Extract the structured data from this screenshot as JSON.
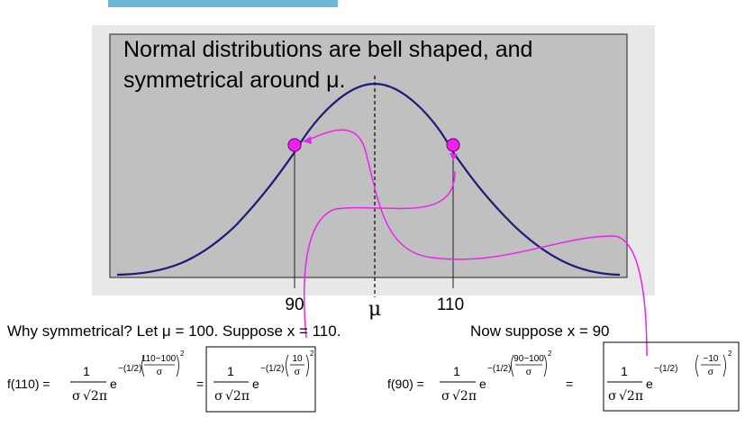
{
  "slide": {
    "heading_line1": "Normal distributions are bell shaped, and",
    "heading_line2": "symmetrical around μ."
  },
  "chart_data": {
    "type": "line",
    "title": "",
    "x_tick_labels": [
      "90",
      "μ",
      "110"
    ],
    "highlighted_points": [
      {
        "x": 90,
        "label": "90"
      },
      {
        "x": 110,
        "label": "110"
      }
    ],
    "mean_marker": "μ",
    "grid": false
  },
  "text": {
    "why": "Why symmetrical?  Let μ = 100.  Suppose x = 110.",
    "now": "Now suppose x = 90"
  },
  "equations": {
    "f110_lhs": "f(110) =",
    "f90_lhs": "f(90) =",
    "one": "1",
    "sigma": "σ",
    "sqrt_two_pi": "√2π",
    "e": "e",
    "minus_half": "−(1/2)",
    "num_110_100": "110−100",
    "num_10": "10",
    "num_90_100": "90−100",
    "num_neg_10": "−10",
    "equals": "=",
    "power": "2"
  },
  "colors": {
    "panel": "#c0c0c0",
    "curve": "#1b1b7a",
    "highlight": "#ee22ee"
  }
}
